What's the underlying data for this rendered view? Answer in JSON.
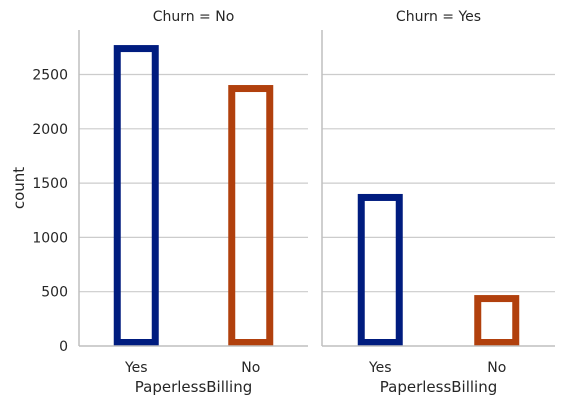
{
  "chart_data": [
    {
      "type": "bar",
      "title": "Churn = No",
      "xlabel": "PaperlessBilling",
      "ylabel": "count",
      "categories": [
        "Yes",
        "No"
      ],
      "values": [
        2771,
        2403
      ],
      "ylim": [
        0,
        2900
      ],
      "yticks": [
        "0",
        "500",
        "1000",
        "1500",
        "2000",
        "2500"
      ],
      "grid": true
    },
    {
      "type": "bar",
      "title": "Churn = Yes",
      "xlabel": "PaperlessBilling",
      "ylabel": "",
      "categories": [
        "Yes",
        "No"
      ],
      "values": [
        1400,
        469
      ],
      "ylim": [
        0,
        2900
      ],
      "grid": true
    }
  ],
  "colors": {
    "Yes": "#001c7f",
    "No": "#b1400d",
    "grid": "#cccccc",
    "axis": "#bfbfbf",
    "text": "#262626"
  }
}
